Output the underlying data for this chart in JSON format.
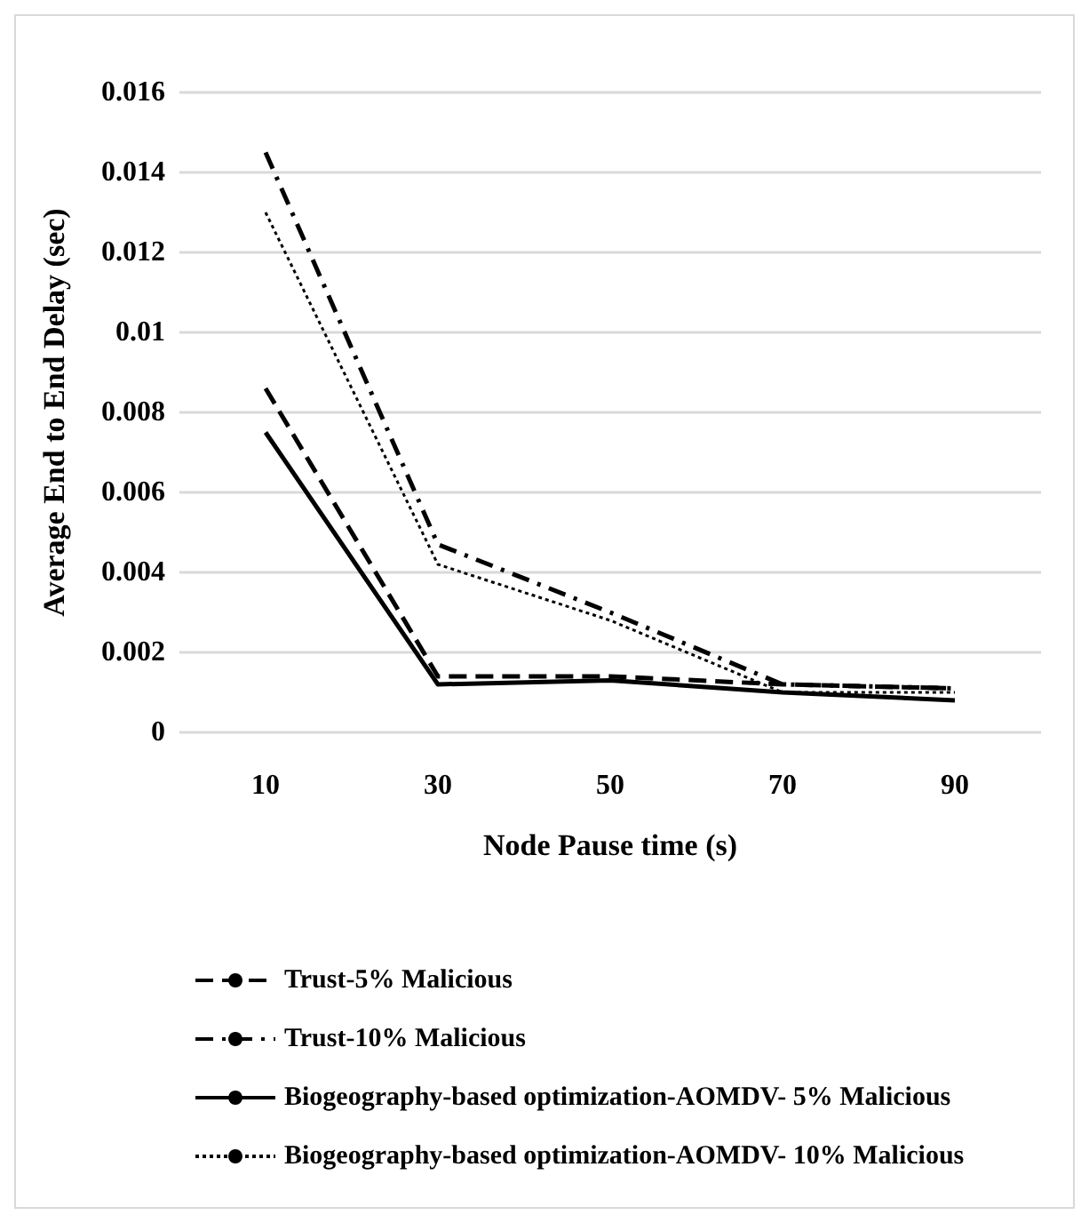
{
  "chart_data": {
    "type": "line",
    "xlabel": "Node Pause time (s)",
    "ylabel": "Average End to End Delay (sec)",
    "categories": [
      "10",
      "30",
      "50",
      "70",
      "90"
    ],
    "series": [
      {
        "name": "Trust-5% Malicious",
        "color": "#000000",
        "line_style": "dashed",
        "values": [
          0.0086,
          0.0014,
          0.0014,
          0.0012,
          0.0011
        ]
      },
      {
        "name": "Trust-10% Malicious",
        "color": "#000000",
        "line_style": "dashdot",
        "values": [
          0.0145,
          0.0047,
          0.003,
          0.0012,
          0.0011
        ]
      },
      {
        "name": "Biogeography-based optimization-AOMDV- 5% Malicious",
        "color": "#000000",
        "line_style": "solid",
        "values": [
          0.0075,
          0.0012,
          0.0013,
          0.001,
          0.0008
        ]
      },
      {
        "name": "Biogeography-based optimization-AOMDV- 10% Malicious",
        "color": "#000000",
        "line_style": "dotted",
        "values": [
          0.013,
          0.0042,
          0.0028,
          0.001,
          0.001
        ]
      }
    ],
    "ylim": [
      0,
      0.016
    ],
    "yticks": [
      0,
      0.002,
      0.004,
      0.006,
      0.008,
      0.01,
      0.012,
      0.014,
      0.016
    ],
    "grid": "y",
    "legend": "bottom",
    "marker": "none"
  }
}
